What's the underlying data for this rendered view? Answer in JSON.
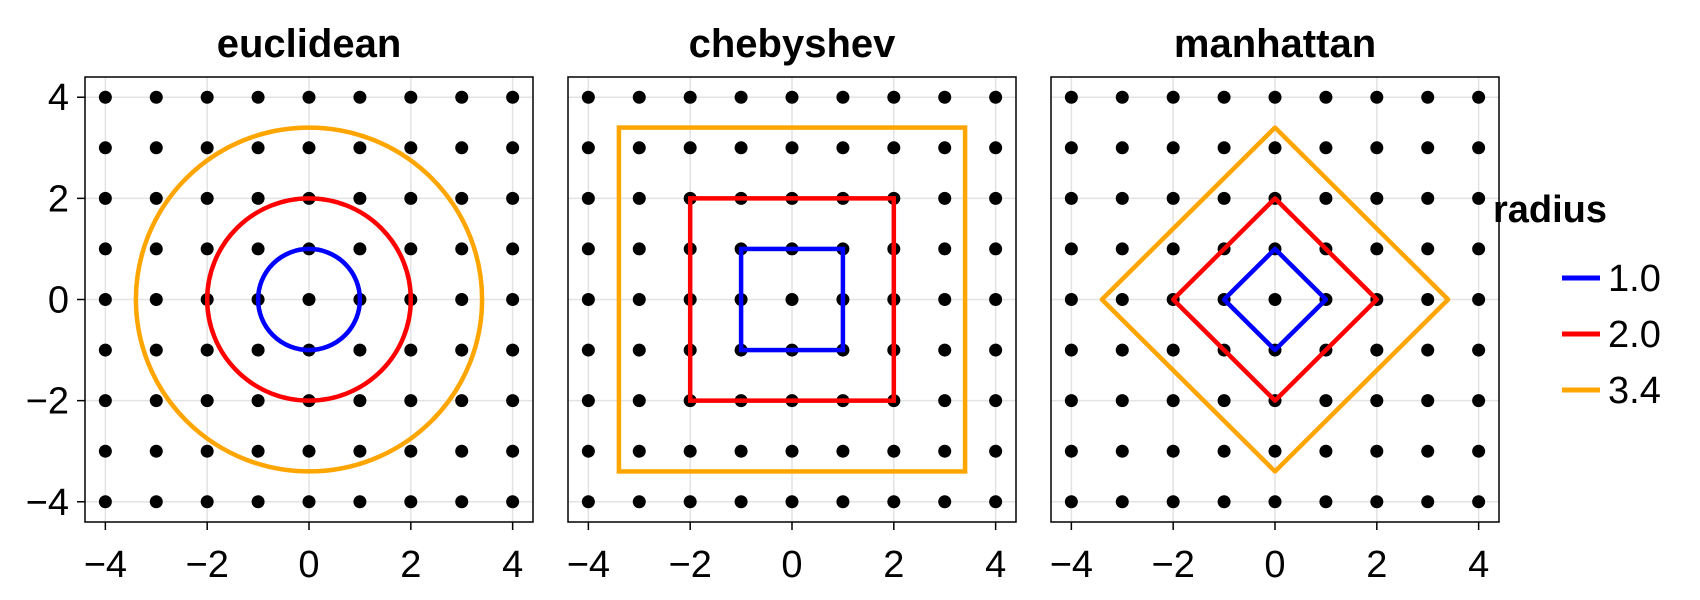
{
  "chart_data": [
    {
      "type": "scatter",
      "title": "euclidean",
      "xlim": [
        -4.4,
        4.4
      ],
      "ylim": [
        -4.4,
        4.4
      ],
      "xticks": [
        -4,
        -2,
        0,
        2,
        4
      ],
      "yticks": [
        -4,
        -2,
        0,
        2,
        4
      ],
      "xtick_labels": [
        "−4",
        "−2",
        "0",
        "2",
        "4"
      ],
      "ytick_labels": [
        "−4",
        "−2",
        "0",
        "2",
        "4"
      ],
      "grid": true,
      "points": {
        "x_range": [
          -4,
          4
        ],
        "y_range": [
          -4,
          4
        ],
        "step": 1,
        "color": "#000000"
      },
      "series": [
        {
          "name": "1.0",
          "shape": "circle",
          "radius": 1.0,
          "color": "#0000ff"
        },
        {
          "name": "2.0",
          "shape": "circle",
          "radius": 2.0,
          "color": "#ff0000"
        },
        {
          "name": "3.4",
          "shape": "circle",
          "radius": 3.4,
          "color": "#ffa500"
        }
      ]
    },
    {
      "type": "scatter",
      "title": "chebyshev",
      "xlim": [
        -4.4,
        4.4
      ],
      "ylim": [
        -4.4,
        4.4
      ],
      "xticks": [
        -4,
        -2,
        0,
        2,
        4
      ],
      "xtick_labels": [
        "−4",
        "−2",
        "0",
        "2",
        "4"
      ],
      "grid": true,
      "points": {
        "x_range": [
          -4,
          4
        ],
        "y_range": [
          -4,
          4
        ],
        "step": 1,
        "color": "#000000"
      },
      "series": [
        {
          "name": "1.0",
          "shape": "square",
          "radius": 1.0,
          "color": "#0000ff"
        },
        {
          "name": "2.0",
          "shape": "square",
          "radius": 2.0,
          "color": "#ff0000"
        },
        {
          "name": "3.4",
          "shape": "square",
          "radius": 3.4,
          "color": "#ffa500"
        }
      ]
    },
    {
      "type": "scatter",
      "title": "manhattan",
      "xlim": [
        -4.4,
        4.4
      ],
      "ylim": [
        -4.4,
        4.4
      ],
      "xticks": [
        -4,
        -2,
        0,
        2,
        4
      ],
      "xtick_labels": [
        "−4",
        "−2",
        "0",
        "2",
        "4"
      ],
      "grid": true,
      "points": {
        "x_range": [
          -4,
          4
        ],
        "y_range": [
          -4,
          4
        ],
        "step": 1,
        "color": "#000000"
      },
      "series": [
        {
          "name": "1.0",
          "shape": "diamond",
          "radius": 1.0,
          "color": "#0000ff"
        },
        {
          "name": "2.0",
          "shape": "diamond",
          "radius": 2.0,
          "color": "#ff0000"
        },
        {
          "name": "3.4",
          "shape": "diamond",
          "radius": 3.4,
          "color": "#ffa500"
        }
      ]
    }
  ],
  "legend": {
    "title": "radius",
    "placement": "right",
    "items": [
      {
        "label": "1.0",
        "color": "#0000ff"
      },
      {
        "label": "2.0",
        "color": "#ff0000"
      },
      {
        "label": "3.4",
        "color": "#ffa500"
      }
    ]
  }
}
